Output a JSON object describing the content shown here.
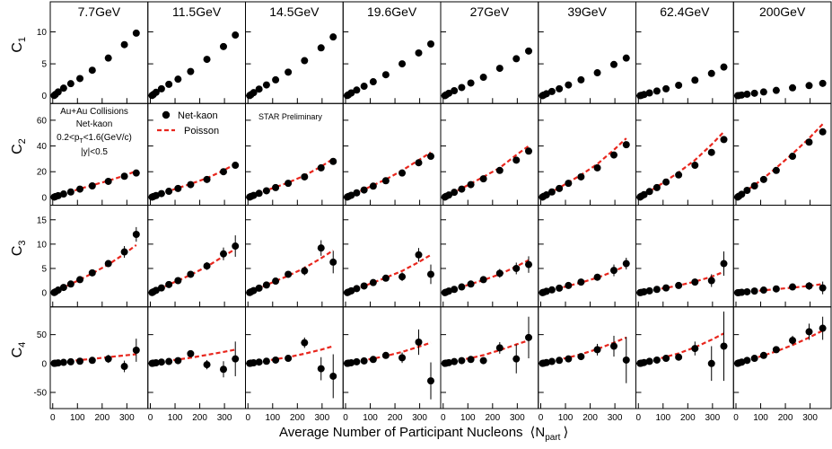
{
  "chart_data": {
    "type": "scatter",
    "xlabel": "Average Number of Participant Nucleons",
    "xlabel_symbol": "⟨N",
    "xlabel_sub": "part",
    "xlabel_close": "⟩",
    "xlim": [
      -10,
      385
    ],
    "x_ticks": [
      "0",
      "100",
      "200",
      "300"
    ],
    "x_tick_values": [
      0,
      100,
      200,
      300
    ],
    "energies": [
      "7.7GeV",
      "11.5GeV",
      "14.5GeV",
      "19.6GeV",
      "27GeV",
      "39GeV",
      "62.4GeV",
      "200GeV"
    ],
    "npart": [
      [
        6,
        11,
        22,
        44,
        73,
        110,
        160,
        225,
        290,
        338
      ],
      [
        7,
        12,
        23,
        45,
        75,
        112,
        163,
        229,
        296,
        344
      ],
      [
        7,
        12,
        23,
        45,
        75,
        112,
        163,
        229,
        296,
        345
      ],
      [
        7,
        12,
        23,
        45,
        75,
        112,
        163,
        229,
        296,
        345
      ],
      [
        7,
        12,
        23,
        45,
        75,
        112,
        163,
        229,
        296,
        346
      ],
      [
        7,
        12,
        23,
        45,
        75,
        112,
        163,
        229,
        296,
        346
      ],
      [
        7,
        12,
        23,
        45,
        75,
        112,
        163,
        229,
        296,
        346
      ],
      [
        7,
        12,
        23,
        45,
        75,
        112,
        163,
        229,
        296,
        351
      ]
    ],
    "rows": [
      {
        "label": "C",
        "sub": "1",
        "ylim": [
          -1.2,
          14.7
        ],
        "ticks": [
          0,
          5,
          10
        ],
        "tick_labels": [
          "0",
          "5",
          "10"
        ],
        "values": [
          [
            0.05,
            0.22,
            0.6,
            1.2,
            1.9,
            2.7,
            4,
            5.9,
            8,
            9.8
          ],
          [
            0.05,
            0.2,
            0.55,
            1.1,
            1.8,
            2.6,
            3.8,
            5.7,
            7.7,
            9.5
          ],
          [
            0.04,
            0.18,
            0.5,
            1.05,
            1.7,
            2.5,
            3.7,
            5.5,
            7.5,
            9.2
          ],
          [
            0.04,
            0.17,
            0.45,
            0.9,
            1.5,
            2.2,
            3.3,
            5,
            6.7,
            8.1
          ],
          [
            0.03,
            0.15,
            0.4,
            0.8,
            1.3,
            2,
            2.9,
            4.3,
            5.8,
            7
          ],
          [
            0.02,
            0.12,
            0.32,
            0.68,
            1.1,
            1.7,
            2.5,
            3.6,
            4.9,
            5.9
          ],
          [
            0.02,
            0.08,
            0.2,
            0.45,
            0.75,
            1.1,
            1.65,
            2.45,
            3.5,
            4.5
          ],
          [
            0.02,
            0.05,
            0.12,
            0.25,
            0.4,
            0.6,
            0.85,
            1.25,
            1.6,
            1.95
          ]
        ],
        "poisson": []
      },
      {
        "label": "C",
        "sub": "2",
        "ylim": [
          -6,
          73
        ],
        "ticks": [
          0,
          20,
          40,
          60
        ],
        "tick_labels": [
          "0",
          "20",
          "40",
          "60"
        ],
        "values": [
          [
            0.3,
            0.7,
            1.4,
            2.7,
            4.3,
            6.5,
            9,
            12.5,
            16.5,
            19
          ],
          [
            0.3,
            0.7,
            1.5,
            3,
            4.8,
            7,
            10,
            14,
            20,
            25
          ],
          [
            0.3,
            0.8,
            1.6,
            3.2,
            5.2,
            7.7,
            11,
            16,
            23,
            28
          ],
          [
            0.3,
            0.8,
            1.7,
            3.6,
            5.8,
            8.8,
            13,
            19,
            27,
            32
          ],
          [
            0.3,
            0.9,
            1.9,
            4,
            6.5,
            10,
            14.5,
            21,
            29,
            36
          ],
          [
            0.3,
            0.9,
            2,
            4.3,
            7,
            11,
            16,
            23,
            33,
            41
          ],
          [
            0.3,
            1,
            2.2,
            4.6,
            7.7,
            12,
            17.5,
            25,
            35,
            45
          ],
          [
            0.3,
            1,
            2.5,
            5.5,
            9,
            14,
            21,
            32,
            43,
            51
          ]
        ],
        "poisson": [
          [
            0.3,
            0.7,
            1.4,
            2.8,
            4.5,
            6.8,
            9.5,
            13,
            17,
            20.5
          ],
          [
            0.3,
            0.7,
            1.5,
            3.1,
            5,
            7.3,
            10.5,
            15,
            21,
            26
          ],
          [
            0.3,
            0.8,
            1.6,
            3.4,
            5.5,
            8,
            11.5,
            17,
            24,
            30
          ],
          [
            0.3,
            0.8,
            1.8,
            3.8,
            6.2,
            9.5,
            14,
            21,
            29,
            35
          ],
          [
            0.3,
            0.9,
            2,
            4.3,
            7,
            10.8,
            16,
            23,
            33,
            40
          ],
          [
            0.3,
            0.9,
            2.1,
            4.5,
            7.5,
            11.8,
            17.5,
            26,
            37,
            46
          ],
          [
            0.3,
            1,
            2.3,
            4.8,
            8.2,
            13,
            19.5,
            29,
            41,
            51
          ],
          [
            0.3,
            1,
            2.6,
            5.8,
            9.6,
            15,
            23,
            34,
            46,
            57
          ]
        ]
      },
      {
        "label": "C",
        "sub": "3",
        "ylim": [
          -2.9,
          18
        ],
        "ticks": [
          0,
          5,
          10,
          15
        ],
        "tick_labels": [
          "0",
          "5",
          "10",
          "15"
        ],
        "values": [
          [
            0.05,
            0.2,
            0.55,
            1.1,
            1.8,
            2.7,
            4.1,
            6,
            8.4,
            12
          ],
          [
            0.05,
            0.2,
            0.5,
            1,
            1.7,
            2.5,
            3.8,
            5.5,
            8,
            9.6
          ],
          [
            0.05,
            0.18,
            0.45,
            0.95,
            1.6,
            2.4,
            3.8,
            4.5,
            9.2,
            6.3
          ],
          [
            0.04,
            0.15,
            0.4,
            0.85,
            1.4,
            2.1,
            3,
            3.3,
            7.8,
            3.8
          ],
          [
            0.03,
            0.13,
            0.35,
            0.7,
            1.2,
            1.8,
            2.7,
            4,
            5,
            5.8
          ],
          [
            0.02,
            0.11,
            0.3,
            0.6,
            0.95,
            1.5,
            2.2,
            3.2,
            4.6,
            6
          ],
          [
            0.02,
            0.08,
            0.2,
            0.4,
            0.7,
            1,
            1.5,
            2.2,
            2.5,
            6
          ],
          [
            0.01,
            0.04,
            0.1,
            0.2,
            0.35,
            0.55,
            0.8,
            1.2,
            1.4,
            1
          ]
        ],
        "errors": [
          [
            0.05,
            0.08,
            0.15,
            0.2,
            0.3,
            0.4,
            0.5,
            0.7,
            1.2,
            1.5
          ],
          [
            0.05,
            0.08,
            0.15,
            0.2,
            0.3,
            0.4,
            0.5,
            0.8,
            1.3,
            2.2
          ],
          [
            0.05,
            0.08,
            0.15,
            0.2,
            0.3,
            0.4,
            0.5,
            0.9,
            1.6,
            2.3
          ],
          [
            0.05,
            0.08,
            0.15,
            0.2,
            0.3,
            0.4,
            0.5,
            0.9,
            1.4,
            2
          ],
          [
            0.05,
            0.08,
            0.15,
            0.2,
            0.3,
            0.4,
            0.5,
            0.9,
            1.2,
            1.7
          ],
          [
            0.05,
            0.08,
            0.15,
            0.2,
            0.3,
            0.4,
            0.5,
            0.7,
            1.2,
            1.2
          ],
          [
            0.05,
            0.08,
            0.15,
            0.2,
            0.3,
            0.4,
            0.5,
            0.7,
            1.3,
            2.5
          ],
          [
            0.05,
            0.08,
            0.15,
            0.2,
            0.3,
            0.4,
            0.5,
            0.6,
            0.8,
            1.3
          ]
        ],
        "poisson": [
          [
            0.05,
            0.2,
            0.55,
            1.1,
            1.8,
            2.7,
            4,
            5.8,
            8,
            9.8
          ],
          [
            0.05,
            0.2,
            0.5,
            1,
            1.7,
            2.5,
            3.7,
            5.4,
            7.5,
            9
          ],
          [
            0.05,
            0.18,
            0.45,
            0.95,
            1.6,
            2.4,
            3.5,
            5.1,
            7.1,
            8.7
          ],
          [
            0.04,
            0.15,
            0.4,
            0.85,
            1.4,
            2.1,
            3.1,
            4.5,
            6.3,
            7.8
          ],
          [
            0.03,
            0.13,
            0.35,
            0.7,
            1.2,
            1.8,
            2.6,
            3.8,
            5.4,
            6.7
          ],
          [
            0.02,
            0.11,
            0.3,
            0.6,
            0.95,
            1.4,
            2.1,
            3.1,
            4.4,
            5.6
          ],
          [
            0.02,
            0.08,
            0.2,
            0.4,
            0.7,
            1,
            1.5,
            2.3,
            3.3,
            4.3
          ],
          [
            0.01,
            0.04,
            0.1,
            0.2,
            0.35,
            0.5,
            0.75,
            1.05,
            1.4,
            1.8
          ]
        ]
      },
      {
        "label": "C",
        "sub": "4",
        "ylim": [
          -78,
          98
        ],
        "ticks": [
          -50,
          0,
          50
        ],
        "tick_labels": [
          "-50",
          "0",
          "50"
        ],
        "values": [
          [
            0.3,
            0.5,
            1,
            2,
            3,
            4,
            5.5,
            8,
            -5,
            23
          ],
          [
            0.3,
            0.6,
            1.2,
            2.5,
            3.5,
            5,
            17,
            -2,
            -10,
            8
          ],
          [
            0.3,
            0.6,
            1.2,
            2.5,
            4,
            6,
            9,
            36,
            -9,
            -22
          ],
          [
            0.3,
            0.6,
            1.3,
            3,
            4.5,
            7,
            14,
            10,
            37,
            -30
          ],
          [
            0.3,
            0.7,
            1.5,
            3.3,
            5,
            7,
            5,
            27,
            8,
            45
          ],
          [
            0.3,
            0.7,
            1.6,
            3.5,
            5.5,
            8,
            12,
            24,
            30,
            6
          ],
          [
            0.3,
            0.7,
            1.7,
            3.8,
            6,
            9,
            11,
            26,
            0,
            30
          ],
          [
            0.3,
            1,
            2.4,
            5.4,
            9,
            14,
            24,
            40,
            55,
            61
          ]
        ],
        "errors": [
          [
            0.5,
            0.8,
            1.2,
            2,
            3,
            4,
            5,
            7,
            10,
            20
          ],
          [
            0.5,
            0.8,
            1.2,
            2,
            3,
            4,
            5,
            8,
            14,
            30
          ],
          [
            0.5,
            0.8,
            1.2,
            2,
            3,
            4,
            5,
            9,
            20,
            38
          ],
          [
            0.5,
            0.8,
            1.2,
            2,
            3,
            4,
            5,
            9,
            22,
            32
          ],
          [
            0.5,
            0.8,
            1.2,
            2,
            3,
            4,
            5,
            10,
            25,
            36
          ],
          [
            0.5,
            0.8,
            1.2,
            2,
            3,
            4,
            5,
            10,
            18,
            40
          ],
          [
            0.5,
            0.8,
            1.2,
            2,
            3,
            4,
            5,
            12,
            30,
            60
          ],
          [
            0.5,
            0.8,
            1.2,
            2,
            3,
            4,
            5,
            8,
            14,
            20
          ]
        ],
        "poisson": [
          [
            0.3,
            0.6,
            1.3,
            2.5,
            4,
            6,
            8,
            11,
            14,
            16
          ],
          [
            0.3,
            0.7,
            1.4,
            3,
            4.8,
            7,
            10,
            15,
            20,
            24
          ],
          [
            0.3,
            0.7,
            1.5,
            3.2,
            5,
            7.5,
            11,
            17,
            24,
            30
          ],
          [
            0.3,
            0.8,
            1.7,
            3.6,
            5.8,
            8.5,
            13,
            20,
            29,
            36
          ],
          [
            0.3,
            0.8,
            1.8,
            4,
            6.5,
            9.5,
            14.5,
            23,
            33,
            40
          ],
          [
            0.3,
            0.9,
            2,
            4.3,
            7,
            10.5,
            16,
            25,
            36,
            45
          ],
          [
            0.3,
            0.9,
            2.1,
            4.6,
            7.5,
            11.5,
            17.5,
            28,
            41,
            52
          ],
          [
            0.3,
            1,
            2.5,
            5.6,
            9.2,
            14,
            21,
            32,
            45,
            57
          ]
        ]
      }
    ],
    "legend": {
      "data_label": "Net-kaon",
      "model_label": "Poisson",
      "position": "top-left, row 2"
    },
    "annotation_lines": [
      "Au+Au Collisions",
      "Net-kaon",
      "0.2<p",
      "T",
      "<1.6(GeV/c)",
      "|y|<0.5"
    ],
    "preliminary": "STAR Preliminary",
    "colors": {
      "markers": "#000000",
      "model": "#e8261d",
      "frame": "#000000"
    }
  }
}
